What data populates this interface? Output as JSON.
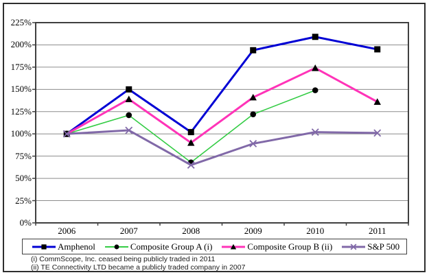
{
  "chart_data": {
    "type": "line",
    "title": "",
    "categories": [
      "2006",
      "2007",
      "2008",
      "2009",
      "2010",
      "2011"
    ],
    "y_ticks": [
      "0%",
      "25%",
      "50%",
      "75%",
      "100%",
      "125%",
      "150%",
      "175%",
      "200%",
      "225%"
    ],
    "y_tick_values": [
      0,
      25,
      50,
      75,
      100,
      125,
      150,
      175,
      200,
      225
    ],
    "ylim": [
      0,
      225
    ],
    "grid": true,
    "legend_position": "bottom",
    "series": [
      {
        "name": "Amphenol",
        "color": "#0000d4",
        "marker": "square",
        "line_width": 3,
        "values": [
          100,
          150,
          102,
          194,
          209,
          195
        ]
      },
      {
        "name": "Composite Group A (i)",
        "color": "#33cc44",
        "marker": "circle",
        "line_width": 1.6,
        "values": [
          100,
          121,
          68,
          122,
          149,
          null
        ]
      },
      {
        "name": "Composite Group B (ii)",
        "color": "#ff33b8",
        "marker": "triangle",
        "line_width": 3,
        "values": [
          100,
          139,
          90,
          141,
          174,
          136
        ]
      },
      {
        "name": "S&P 500",
        "color": "#8169a8",
        "marker": "x",
        "line_width": 3,
        "values": [
          100,
          104,
          65,
          89,
          102,
          101
        ]
      }
    ]
  },
  "footnotes": [
    "(i) CommScope, Inc. ceased being publicly traded in 2011",
    "(ii) TE Connectivity LTD became a publicly traded company in 2007"
  ],
  "colors": {
    "border": "#2e2e2e",
    "frame": "#3f3f3f",
    "gridline": "#8c8c8c",
    "marker": "#000000"
  }
}
